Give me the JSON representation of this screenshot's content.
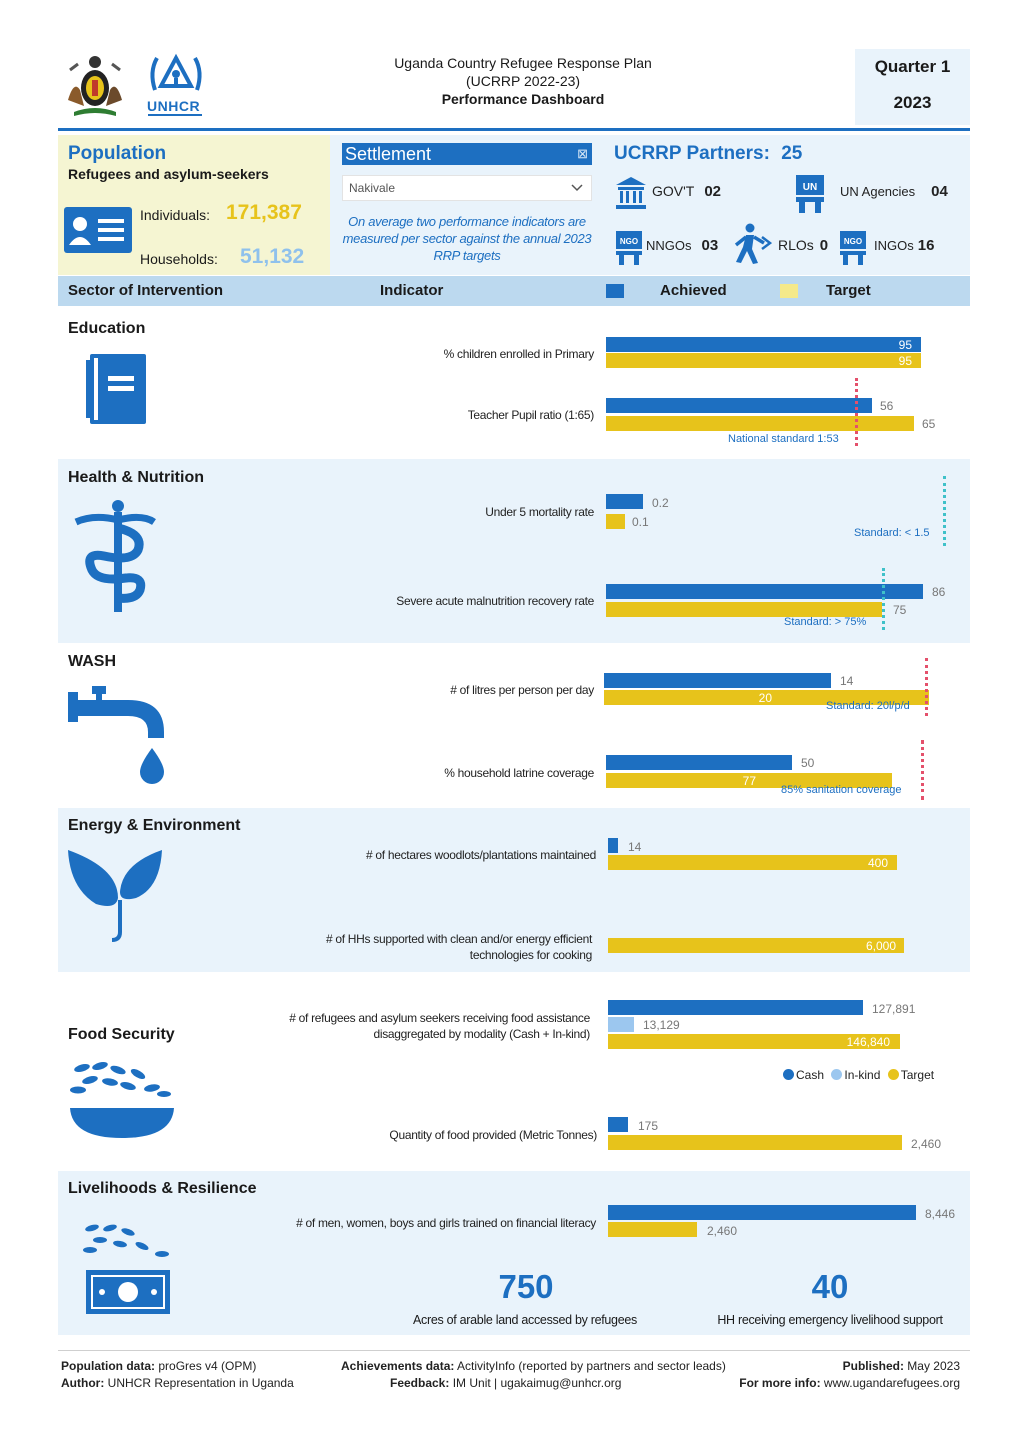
{
  "header": {
    "title_line1": "Uganda Country Refugee Response Plan",
    "title_line2": "(UCRRP 2022-23)",
    "title_line3": "Performance Dashboard",
    "quarter": "Quarter 1",
    "year": "2023",
    "logo_text": "UNHCR"
  },
  "population": {
    "title": "Population",
    "subtitle": "Refugees and asylum-seekers",
    "individuals_label": "Individuals:",
    "individuals_value": "171,387",
    "households_label": "Households:",
    "households_value": "51,132"
  },
  "settlement": {
    "label": "Settlement",
    "selected": "Nakivale",
    "note": "On average two performance indicators are measured per sector against the annual 2023 RRP targets"
  },
  "partners": {
    "title": "UCRRP Partners:",
    "total": "25",
    "items": [
      {
        "label": "GOV'T",
        "value": "02"
      },
      {
        "label": "UN Agencies",
        "value": "04"
      },
      {
        "label": "NNGOs",
        "value": "03"
      },
      {
        "label": "RLOs",
        "value": "0"
      },
      {
        "label": "INGOs",
        "value": "16"
      }
    ],
    "icon_texts": {
      "un": "UN",
      "ngo": "NGO",
      "ngo_local": "NGO"
    }
  },
  "table_header": {
    "sector": "Sector of Intervention",
    "indicator": "Indicator",
    "achieved": "Achieved",
    "target": "Target"
  },
  "sections": {
    "education": {
      "title": "Education",
      "ind1_label": "% children enrolled in Primary",
      "ind1_achieved": "95",
      "ind1_target": "95",
      "ind2_label": "Teacher Pupil ratio (1:65)",
      "ind2_achieved": "56",
      "ind2_target": "65",
      "ind2_standard": "National standard 1:53"
    },
    "health": {
      "title": "Health & Nutrition",
      "ind1_label": "Under 5 mortality rate",
      "ind1_achieved": "0.2",
      "ind1_target": "0.1",
      "ind1_standard": "Standard: < 1.5",
      "ind2_label": "Severe acute malnutrition recovery rate",
      "ind2_achieved": "86",
      "ind2_target": "75",
      "ind2_standard": "Standard: > 75%"
    },
    "wash": {
      "title": "WASH",
      "ind1_label": "# of litres per person per day",
      "ind1_achieved": "14",
      "ind1_target": "20",
      "ind1_standard": "Standard: 20l/p/d",
      "ind2_label": "% household latrine coverage",
      "ind2_achieved": "50",
      "ind2_target": "77",
      "ind2_standard": "85% sanitation coverage"
    },
    "energy": {
      "title": "Energy & Environment",
      "ind1_label": "# of hectares woodlots/plantations maintained",
      "ind1_achieved": "14",
      "ind1_target": "400",
      "ind2_label_line1": "# of HHs supported with clean and/or energy efficient",
      "ind2_label_line2": "technologies for cooking",
      "ind2_target": "6,000"
    },
    "food": {
      "title": "Food Security",
      "ind1_label_line1": "# of refugees and asylum seekers receiving food assistance",
      "ind1_label_line2": "disaggregated by modality (Cash + In-kind)",
      "ind1_cash": "127,891",
      "ind1_inkind": "13,129",
      "ind1_target": "146,840",
      "legend_cash": "Cash",
      "legend_inkind": "In-kind",
      "legend_target": "Target",
      "ind2_label": "Quantity of food provided (Metric Tonnes)",
      "ind2_achieved": "175",
      "ind2_target": "2,460"
    },
    "livelihoods": {
      "title": "Livelihoods & Resilience",
      "ind1_label": "# of men, women, boys and girls trained on financial literacy",
      "ind1_achieved": "8,446",
      "ind1_target": "2,460",
      "kpi1_value": "750",
      "kpi1_label": "Acres of arable land accessed by refugees",
      "kpi2_value": "40",
      "kpi2_label": "HH receiving emergency livelihood support"
    }
  },
  "footer": {
    "pop_label": "Population data:",
    "pop_value": "proGres v4 (OPM)",
    "author_label": "Author:",
    "author_value": "UNHCR Representation in Uganda",
    "ach_label": "Achievements data:",
    "ach_value": "ActivityInfo (reported by partners and sector leads)",
    "feedback_label": "Feedback:",
    "feedback_value": "IM Unit | ugakaimug@unhcr.org",
    "pub_label": "Published:",
    "pub_value": "May 2023",
    "info_label": "For more info:",
    "info_value": "www.ugandarefugees.org"
  },
  "chart_data": [
    {
      "type": "bar",
      "title": "Education",
      "categories": [
        "% children enrolled in Primary",
        "Teacher Pupil ratio (1:65)"
      ],
      "series": [
        {
          "name": "Achieved",
          "values": [
            95,
            56
          ]
        },
        {
          "name": "Target",
          "values": [
            95,
            65
          ]
        }
      ]
    },
    {
      "type": "bar",
      "title": "Health & Nutrition",
      "categories": [
        "Under 5 mortality rate",
        "Severe acute malnutrition recovery rate"
      ],
      "series": [
        {
          "name": "Achieved",
          "values": [
            0.2,
            86
          ]
        },
        {
          "name": "Target",
          "values": [
            0.1,
            75
          ]
        }
      ]
    },
    {
      "type": "bar",
      "title": "WASH",
      "categories": [
        "# of litres per person per day",
        "% household latrine coverage"
      ],
      "series": [
        {
          "name": "Achieved",
          "values": [
            14,
            50
          ]
        },
        {
          "name": "Target",
          "values": [
            20,
            77
          ]
        }
      ]
    },
    {
      "type": "bar",
      "title": "Energy & Environment",
      "categories": [
        "# of hectares woodlots/plantations maintained",
        "# of HHs supported with clean and/or energy efficient technologies for cooking"
      ],
      "series": [
        {
          "name": "Achieved",
          "values": [
            14,
            null
          ]
        },
        {
          "name": "Target",
          "values": [
            400,
            6000
          ]
        }
      ]
    },
    {
      "type": "bar",
      "title": "Food Security",
      "categories": [
        "# of refugees and asylum seekers receiving food assistance",
        "Quantity of food provided (Metric Tonnes)"
      ],
      "series": [
        {
          "name": "Cash",
          "values": [
            127891,
            175
          ]
        },
        {
          "name": "In-kind",
          "values": [
            13129,
            null
          ]
        },
        {
          "name": "Target",
          "values": [
            146840,
            2460
          ]
        }
      ]
    },
    {
      "type": "bar",
      "title": "Livelihoods & Resilience",
      "categories": [
        "# of men, women, boys and girls trained on financial literacy"
      ],
      "series": [
        {
          "name": "Achieved",
          "values": [
            8446
          ]
        },
        {
          "name": "Target",
          "values": [
            2460
          ]
        }
      ]
    }
  ],
  "colors": {
    "accent": "#1d6fc1",
    "target": "#e7c31b",
    "inkind": "#9cc7ef",
    "band": "#e9f3fb",
    "header_band": "#bcd9ef",
    "highlight": "#f5f5d2"
  }
}
